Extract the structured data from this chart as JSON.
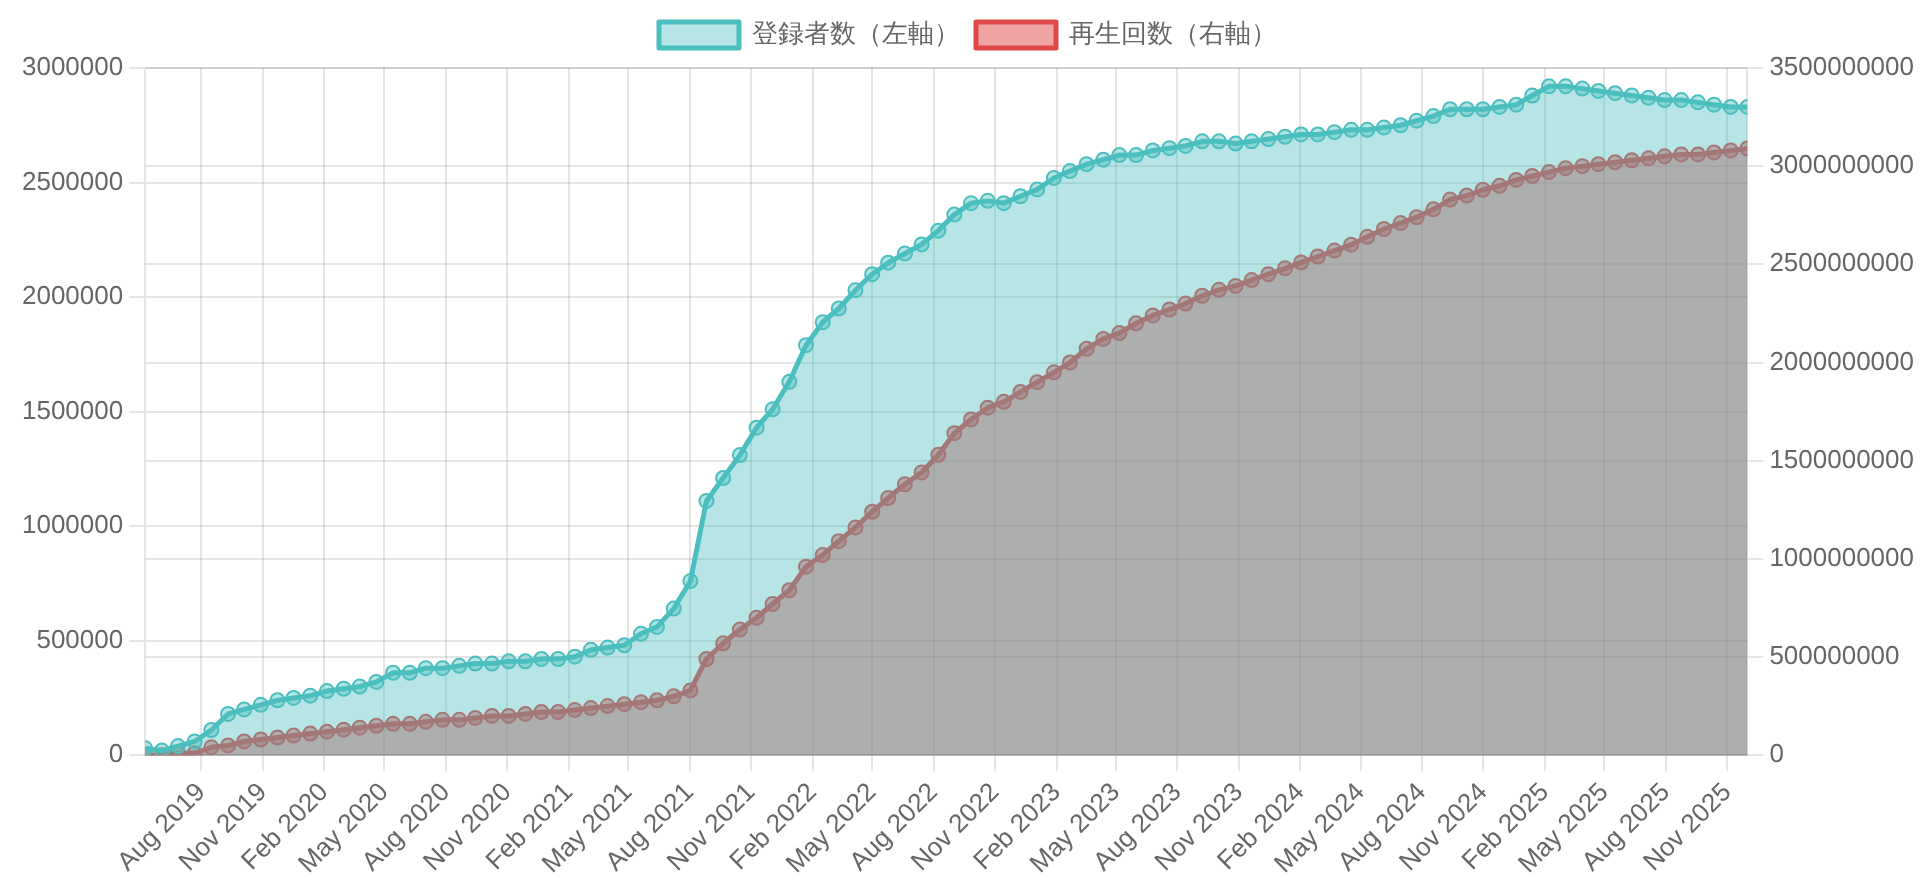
{
  "chart_data": {
    "type": "area",
    "x": [
      "2019-05-09",
      "2019-06-03",
      "2019-06-27",
      "2019-07-22",
      "2019-08-16",
      "2019-09-10",
      "2019-10-04",
      "2019-10-29",
      "2019-11-23",
      "2019-12-17",
      "2020-01-11",
      "2020-02-05",
      "2020-03-01",
      "2020-03-25",
      "2020-04-19",
      "2020-05-14",
      "2020-06-08",
      "2020-07-02",
      "2020-07-27",
      "2020-08-21",
      "2020-09-14",
      "2020-10-09",
      "2020-11-03",
      "2020-11-28",
      "2020-12-22",
      "2021-01-16",
      "2021-02-10",
      "2021-03-06",
      "2021-03-31",
      "2021-04-25",
      "2021-05-20",
      "2021-06-13",
      "2021-07-08",
      "2021-08-02",
      "2021-08-26",
      "2021-09-20",
      "2021-10-15",
      "2021-11-09",
      "2021-12-03",
      "2021-12-28",
      "2022-01-22",
      "2022-02-16",
      "2022-03-12",
      "2022-04-06",
      "2022-05-01",
      "2022-05-25",
      "2022-06-19",
      "2022-07-14",
      "2022-08-08",
      "2022-09-01",
      "2022-09-26",
      "2022-10-21",
      "2022-11-14",
      "2022-12-09",
      "2023-01-03",
      "2023-01-28",
      "2023-02-21",
      "2023-03-18",
      "2023-04-12",
      "2023-05-06",
      "2023-05-31",
      "2023-06-25",
      "2023-07-20",
      "2023-08-13",
      "2023-09-07",
      "2023-10-02",
      "2023-10-27",
      "2023-11-20",
      "2023-12-15",
      "2024-01-09",
      "2024-02-02",
      "2024-02-27",
      "2024-03-23",
      "2024-04-17",
      "2024-05-11",
      "2024-06-05",
      "2024-06-30",
      "2024-07-24",
      "2024-08-18",
      "2024-09-12",
      "2024-10-07",
      "2024-10-31",
      "2024-11-25",
      "2024-12-20",
      "2025-01-13",
      "2025-02-07",
      "2025-03-04",
      "2025-03-29",
      "2025-04-22",
      "2025-05-17",
      "2025-06-11",
      "2025-07-06",
      "2025-07-30",
      "2025-08-24",
      "2025-09-18",
      "2025-10-12",
      "2025-11-06",
      "2025-12-01"
    ],
    "series": [
      {
        "name": "登録者数（左軸）",
        "color": "#4bbfbf",
        "axis": "y",
        "values": [
          30000,
          20000,
          40000,
          60000,
          110000,
          180000,
          200000,
          220000,
          240000,
          250000,
          260000,
          280000,
          290000,
          300000,
          320000,
          360000,
          360000,
          380000,
          380000,
          390000,
          400000,
          400000,
          410000,
          410000,
          420000,
          420000,
          430000,
          460000,
          470000,
          480000,
          530000,
          560000,
          640000,
          760000,
          1110000,
          1210000,
          1310000,
          1430000,
          1510000,
          1630000,
          1790000,
          1890000,
          1950000,
          2030000,
          2100000,
          2150000,
          2190000,
          2230000,
          2290000,
          2360000,
          2410000,
          2420000,
          2410000,
          2440000,
          2470000,
          2520000,
          2550000,
          2580000,
          2600000,
          2620000,
          2620000,
          2640000,
          2650000,
          2660000,
          2680000,
          2680000,
          2670000,
          2680000,
          2690000,
          2700000,
          2710000,
          2710000,
          2720000,
          2730000,
          2730000,
          2740000,
          2750000,
          2770000,
          2790000,
          2820000,
          2820000,
          2820000,
          2830000,
          2840000,
          2880000,
          2920000,
          2920000,
          2910000,
          2900000,
          2890000,
          2880000,
          2870000,
          2860000,
          2860000,
          2850000,
          2840000,
          2830000,
          2830000
        ]
      },
      {
        "name": "再生回数（右軸）",
        "color": "#e04848",
        "axis": "y2",
        "values": [
          0,
          0,
          10000000,
          10000000,
          40000000,
          50000000,
          70000000,
          80000000,
          90000000,
          100000000,
          110000000,
          120000000,
          130000000,
          140000000,
          150000000,
          160000000,
          160000000,
          170000000,
          180000000,
          180000000,
          190000000,
          200000000,
          200000000,
          210000000,
          220000000,
          220000000,
          230000000,
          240000000,
          250000000,
          260000000,
          270000000,
          280000000,
          300000000,
          330000000,
          490000000,
          570000000,
          640000000,
          700000000,
          770000000,
          840000000,
          960000000,
          1020000000,
          1090000000,
          1160000000,
          1240000000,
          1310000000,
          1380000000,
          1440000000,
          1530000000,
          1640000000,
          1710000000,
          1770000000,
          1800000000,
          1850000000,
          1900000000,
          1950000000,
          2000000000,
          2070000000,
          2120000000,
          2150000000,
          2200000000,
          2240000000,
          2270000000,
          2300000000,
          2340000000,
          2370000000,
          2390000000,
          2420000000,
          2450000000,
          2480000000,
          2510000000,
          2540000000,
          2570000000,
          2600000000,
          2640000000,
          2680000000,
          2710000000,
          2740000000,
          2780000000,
          2830000000,
          2850000000,
          2880000000,
          2900000000,
          2930000000,
          2950000000,
          2970000000,
          2990000000,
          3000000000,
          3010000000,
          3020000000,
          3030000000,
          3040000000,
          3050000000,
          3060000000,
          3060000000,
          3070000000,
          3080000000,
          3090000000
        ]
      }
    ],
    "xlim": [
      "2019-05-09",
      "2025-12-01"
    ],
    "xticks": [
      {
        "value": "2019-08-01",
        "label": "Aug 2019"
      },
      {
        "value": "2019-11-01",
        "label": "Nov 2019"
      },
      {
        "value": "2020-02-01",
        "label": "Feb 2020"
      },
      {
        "value": "2020-05-01",
        "label": "May 2020"
      },
      {
        "value": "2020-08-01",
        "label": "Aug 2020"
      },
      {
        "value": "2020-11-01",
        "label": "Nov 2020"
      },
      {
        "value": "2021-02-01",
        "label": "Feb 2021"
      },
      {
        "value": "2021-05-01",
        "label": "May 2021"
      },
      {
        "value": "2021-08-01",
        "label": "Aug 2021"
      },
      {
        "value": "2021-11-01",
        "label": "Nov 2021"
      },
      {
        "value": "2022-02-01",
        "label": "Feb 2022"
      },
      {
        "value": "2022-05-01",
        "label": "May 2022"
      },
      {
        "value": "2022-08-01",
        "label": "Aug 2022"
      },
      {
        "value": "2022-11-01",
        "label": "Nov 2022"
      },
      {
        "value": "2023-02-01",
        "label": "Feb 2023"
      },
      {
        "value": "2023-05-01",
        "label": "May 2023"
      },
      {
        "value": "2023-08-01",
        "label": "Aug 2023"
      },
      {
        "value": "2023-11-01",
        "label": "Nov 2023"
      },
      {
        "value": "2024-02-01",
        "label": "Feb 2024"
      },
      {
        "value": "2024-05-01",
        "label": "May 2024"
      },
      {
        "value": "2024-08-01",
        "label": "Aug 2024"
      },
      {
        "value": "2024-11-01",
        "label": "Nov 2024"
      },
      {
        "value": "2025-02-01",
        "label": "Feb 2025"
      },
      {
        "value": "2025-05-01",
        "label": "May 2025"
      },
      {
        "value": "2025-08-01",
        "label": "Aug 2025"
      },
      {
        "value": "2025-11-01",
        "label": "Nov 2025"
      }
    ],
    "ylim": [
      0,
      3000000
    ],
    "yticks": [
      0,
      500000,
      1000000,
      1500000,
      2000000,
      2500000,
      3000000
    ],
    "y2lim": [
      0,
      3500000000
    ],
    "y2ticks": [
      0,
      500000000,
      1000000000,
      1500000000,
      2000000000,
      2500000000,
      3000000000,
      3500000000
    ],
    "grid": true,
    "legend": "top",
    "marker": "circle",
    "line_style": "solid"
  }
}
